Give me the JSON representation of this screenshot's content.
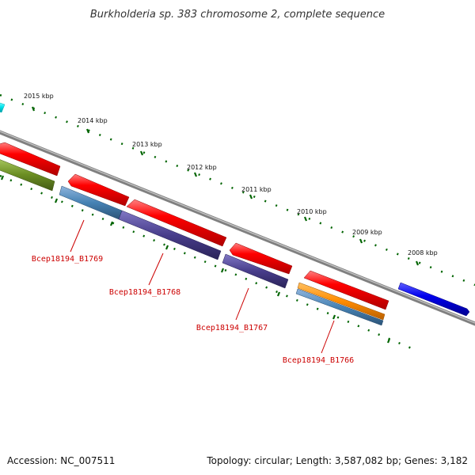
{
  "title": "Burkholderia sp. 383 chromosome 2, complete sequence",
  "ticks": [
    "2015 kbp",
    "2014 kbp",
    "2013 kbp",
    "2012 kbp",
    "2011 kbp",
    "2010 kbp",
    "2009 kbp",
    "2008 kbp"
  ],
  "genes": [
    {
      "label": "Bcep18194_B1769"
    },
    {
      "label": "Bcep18194_B1768"
    },
    {
      "label": "Bcep18194_B1767"
    },
    {
      "label": "Bcep18194_B1766"
    }
  ],
  "footer": {
    "accession": "Accession: NC_007511",
    "summary": "Topology: circular; Length: 3,587,082 bp; Genes: 3,182"
  },
  "colors": {
    "backbone": "#808080",
    "forward_cds": "#ff0000",
    "reverse_cds": "#ff0000",
    "blue_feature": "#0000ee",
    "cyan_feature": "#00e5ee",
    "olive_feature": "#6b8e23",
    "steelblue_feature": "#4682b4",
    "slate_feature": "#483d8b",
    "orange_feature": "#ff8c00",
    "tick_marks": "#006400",
    "gene_label": "#cc0000"
  }
}
